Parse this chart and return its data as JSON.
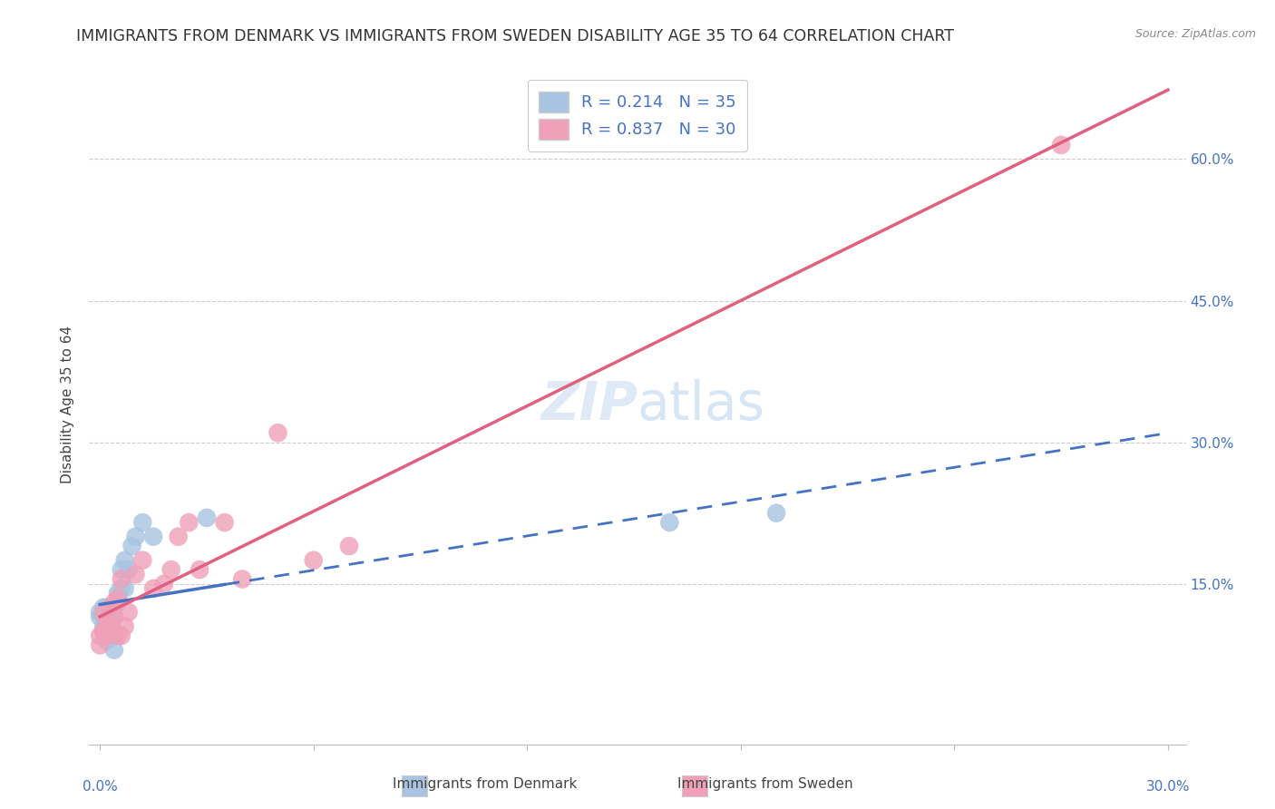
{
  "title": "IMMIGRANTS FROM DENMARK VS IMMIGRANTS FROM SWEDEN DISABILITY AGE 35 TO 64 CORRELATION CHART",
  "source": "Source: ZipAtlas.com",
  "ylabel": "Disability Age 35 to 64",
  "ytick_labels": [
    "15.0%",
    "30.0%",
    "45.0%",
    "60.0%"
  ],
  "ytick_vals": [
    0.15,
    0.3,
    0.45,
    0.6
  ],
  "legend_denmark_R": "0.214",
  "legend_denmark_N": "35",
  "legend_sweden_R": "0.837",
  "legend_sweden_N": "30",
  "legend_label_denmark": "Immigrants from Denmark",
  "legend_label_sweden": "Immigrants from Sweden",
  "denmark_color": "#a8c4e0",
  "sweden_color": "#f0a0b8",
  "denmark_line_color": "#4472c4",
  "sweden_line_color": "#e06080",
  "background_color": "#ffffff",
  "watermark_zip": "ZIP",
  "watermark_atlas": "atlas",
  "xmin": -0.003,
  "xmax": 0.305,
  "ymin": -0.02,
  "ymax": 0.7,
  "title_fontsize": 12.5,
  "axis_label_fontsize": 11,
  "tick_fontsize": 11,
  "watermark_fontsize": 42,
  "denmark_x": [
    0.0,
    0.0,
    0.001,
    0.001,
    0.001,
    0.001,
    0.002,
    0.002,
    0.002,
    0.002,
    0.002,
    0.003,
    0.003,
    0.003,
    0.003,
    0.003,
    0.004,
    0.004,
    0.004,
    0.004,
    0.004,
    0.005,
    0.005,
    0.006,
    0.006,
    0.007,
    0.007,
    0.008,
    0.009,
    0.01,
    0.012,
    0.015,
    0.03,
    0.16,
    0.19
  ],
  "denmark_y": [
    0.115,
    0.12,
    0.1,
    0.105,
    0.118,
    0.125,
    0.09,
    0.1,
    0.11,
    0.115,
    0.125,
    0.095,
    0.1,
    0.105,
    0.11,
    0.12,
    0.08,
    0.095,
    0.1,
    0.115,
    0.125,
    0.13,
    0.14,
    0.145,
    0.165,
    0.145,
    0.175,
    0.165,
    0.19,
    0.2,
    0.215,
    0.2,
    0.22,
    0.215,
    0.225
  ],
  "sweden_x": [
    0.0,
    0.0,
    0.001,
    0.001,
    0.002,
    0.002,
    0.003,
    0.003,
    0.004,
    0.004,
    0.005,
    0.005,
    0.006,
    0.006,
    0.007,
    0.008,
    0.01,
    0.012,
    0.015,
    0.018,
    0.02,
    0.022,
    0.025,
    0.028,
    0.035,
    0.04,
    0.05,
    0.06,
    0.07,
    0.27
  ],
  "sweden_y": [
    0.085,
    0.095,
    0.1,
    0.12,
    0.095,
    0.11,
    0.105,
    0.125,
    0.115,
    0.13,
    0.095,
    0.135,
    0.095,
    0.155,
    0.105,
    0.12,
    0.16,
    0.175,
    0.145,
    0.15,
    0.165,
    0.2,
    0.215,
    0.165,
    0.215,
    0.155,
    0.31,
    0.175,
    0.19,
    0.615
  ],
  "dk_line_xstart": 0.0,
  "dk_line_xend_solid": 0.035,
  "dk_line_xend_dashed": 0.3,
  "sw_line_xstart": 0.0,
  "sw_line_xend": 0.3
}
